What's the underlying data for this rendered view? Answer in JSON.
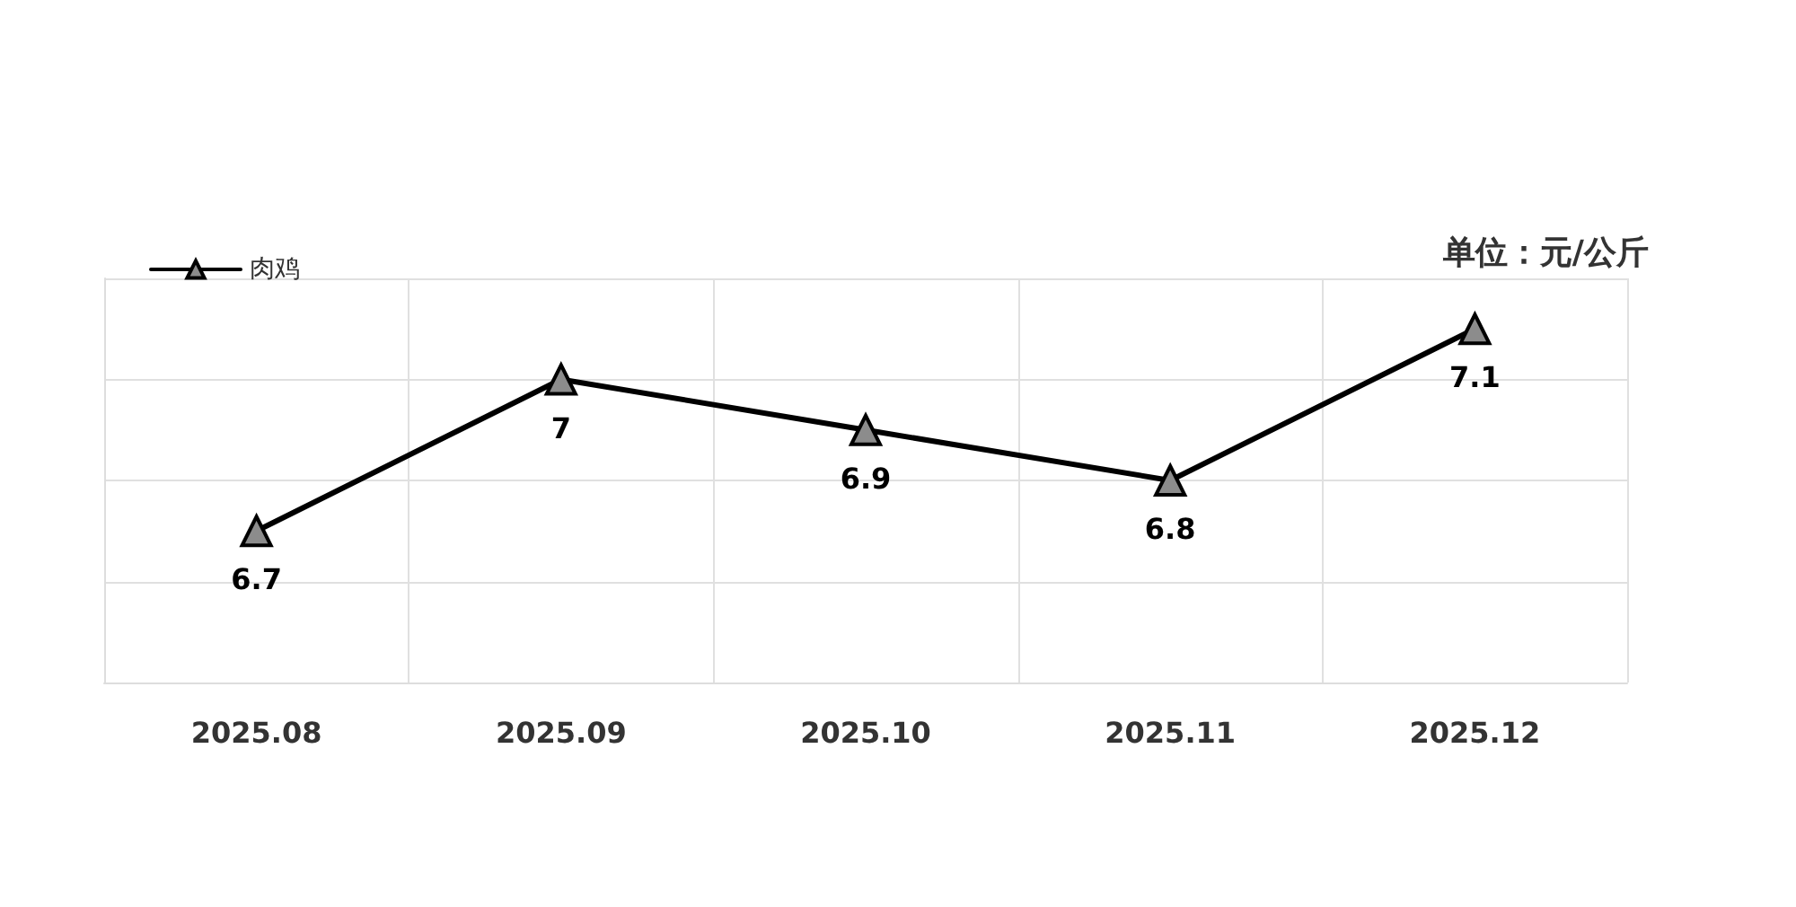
{
  "chart_data": {
    "type": "line",
    "ylabel": "单位：元/公斤",
    "categories": [
      "2025.08",
      "2025.09",
      "2025.10",
      "2025.11",
      "2025.12"
    ],
    "series": [
      {
        "name": "肉鸡",
        "color": "#000000",
        "values": [
          6.7,
          7,
          6.9,
          6.8,
          7.1
        ]
      }
    ],
    "ylim": [
      6.4,
      7.2
    ],
    "yticks": [
      {
        "value": 6.4,
        "label": null
      },
      {
        "value": 6.6,
        "label": null
      },
      {
        "value": 6.8,
        "label": null
      },
      {
        "value": 7.0,
        "label": null
      },
      {
        "value": 7.2,
        "label": null
      }
    ],
    "tick_labels": "x",
    "grid": true,
    "legend": "top left",
    "marker": "triangle",
    "line_style": "solid",
    "data_labels": true
  }
}
